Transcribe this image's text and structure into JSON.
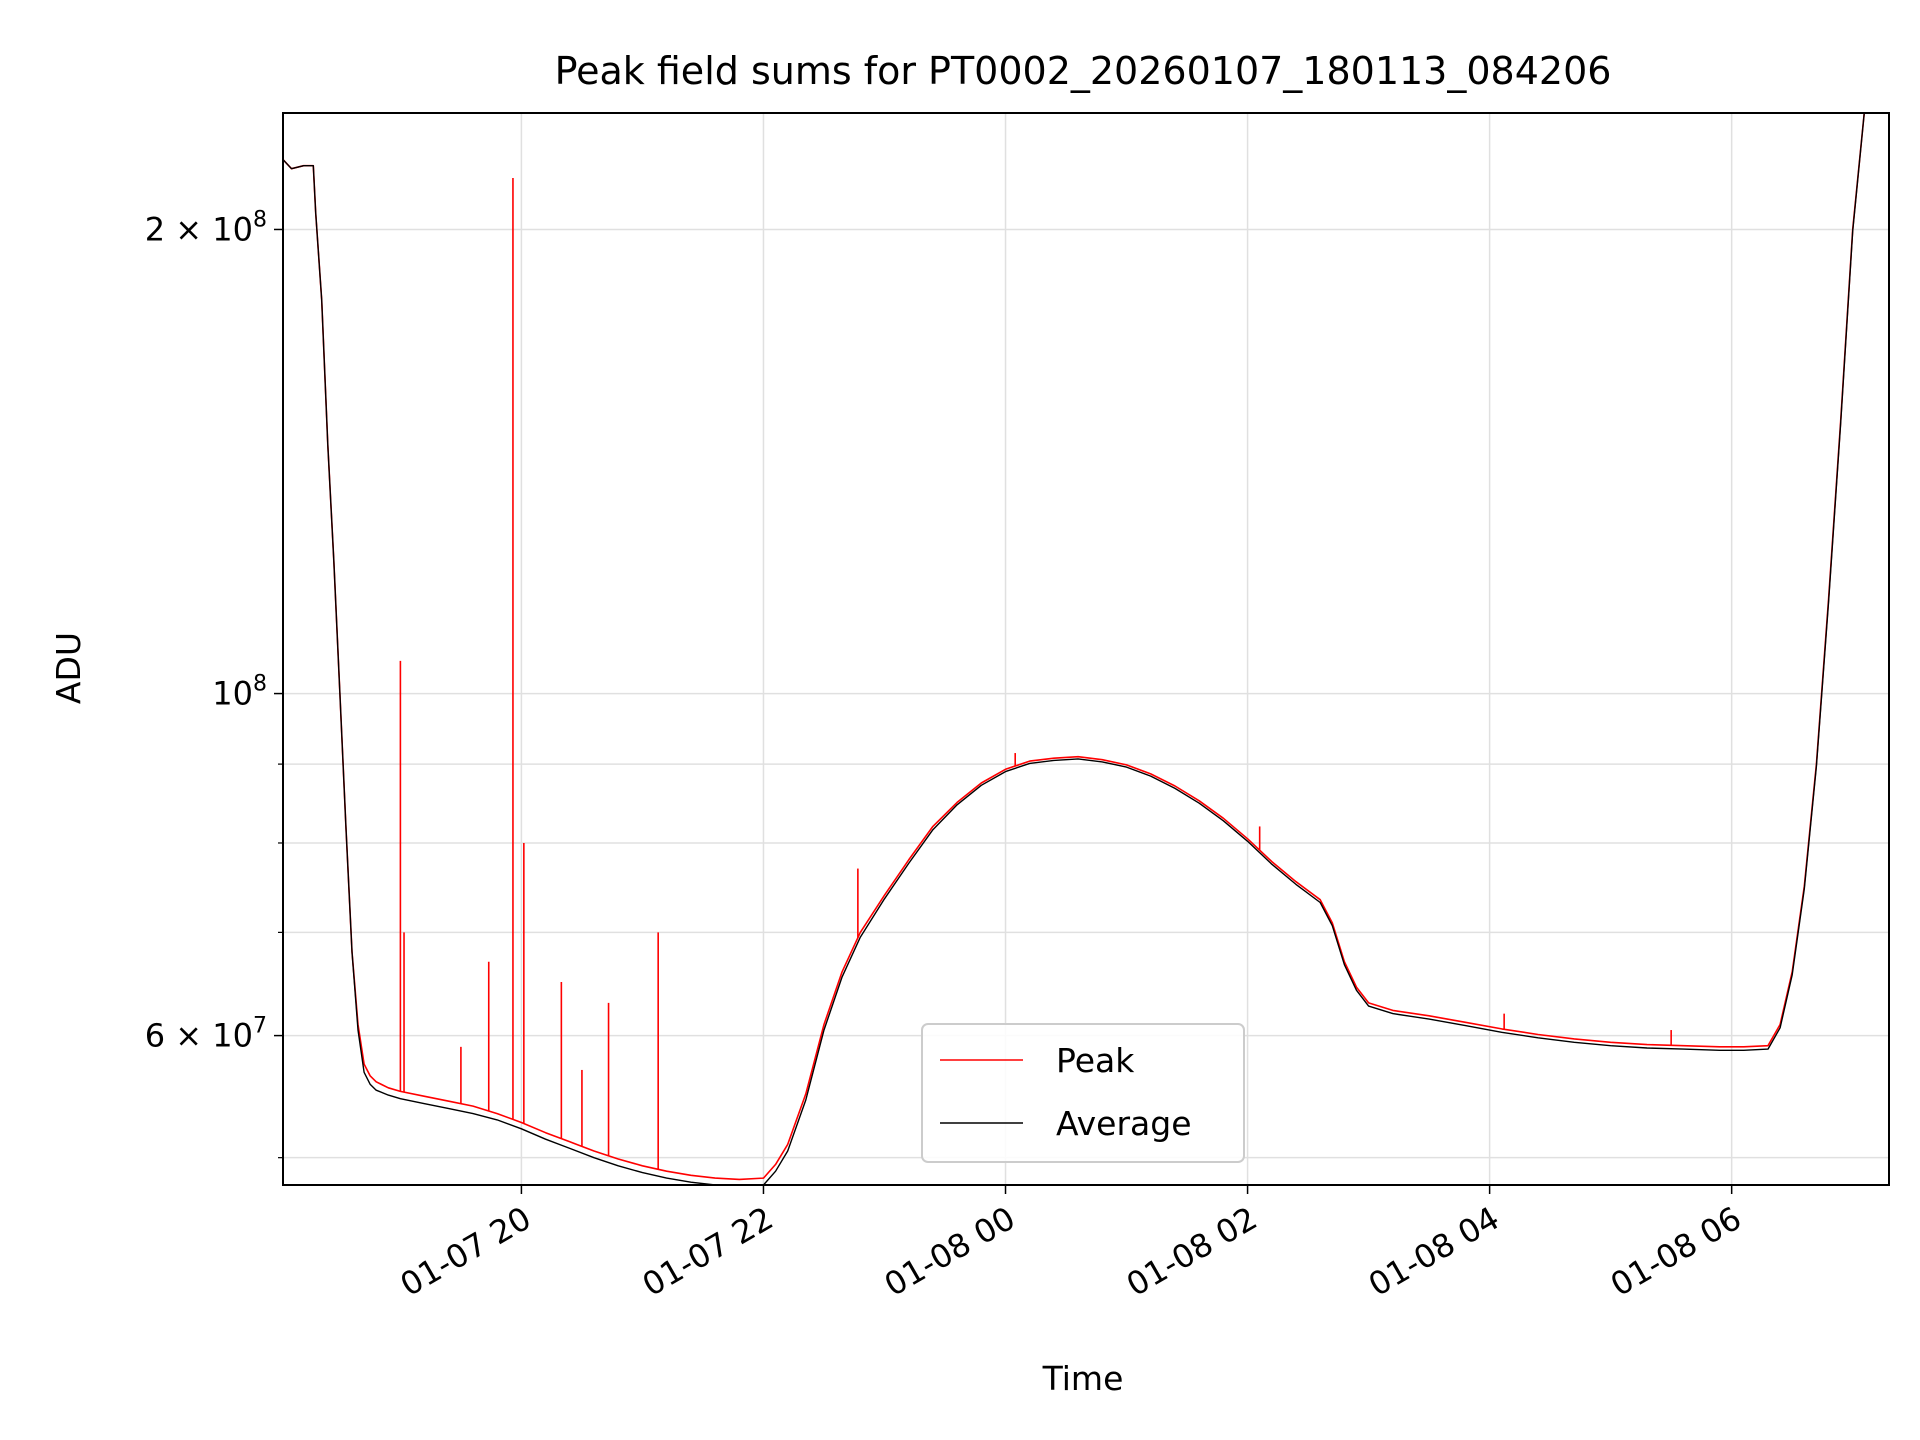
{
  "chart_data": {
    "type": "line",
    "title": "Peak field sums for PT0002_20260107_180113_084206",
    "xlabel": "Time",
    "ylabel": "ADU",
    "yscale": "log",
    "xlim": [
      18.03,
      31.3
    ],
    "ylim": [
      48000000,
      238000000
    ],
    "grid": true,
    "legend_position": "lower-center",
    "x_ticks": [
      {
        "value": 20,
        "label": "01-07 20"
      },
      {
        "value": 22,
        "label": "01-07 22"
      },
      {
        "value": 24,
        "label": "01-08 00"
      },
      {
        "value": 26,
        "label": "01-08 02"
      },
      {
        "value": 28,
        "label": "01-08 04"
      },
      {
        "value": 30,
        "label": "01-08 06"
      }
    ],
    "y_ticks": [
      {
        "value": 200000000,
        "base": "2 × 10",
        "exp": "8"
      },
      {
        "value": 100000000,
        "base": "10",
        "exp": "8"
      },
      {
        "value": 60000000,
        "base": "6 × 10",
        "exp": "7"
      }
    ],
    "y_minor_ticks": [
      50000000,
      70000000,
      80000000,
      90000000
    ],
    "series": [
      {
        "name": "Peak",
        "color": "#ff0000",
        "x": [
          18.03,
          18.1,
          18.2,
          18.28,
          18.3,
          18.35,
          18.4,
          18.45,
          18.5,
          18.55,
          18.6,
          18.65,
          18.7,
          18.75,
          18.8,
          18.9,
          19.0,
          19.2,
          19.4,
          19.6,
          19.8,
          20.0,
          20.2,
          20.4,
          20.6,
          20.8,
          21.0,
          21.2,
          21.4,
          21.6,
          21.8,
          22.0,
          22.1,
          22.2,
          22.35,
          22.5,
          22.65,
          22.8,
          23.0,
          23.2,
          23.4,
          23.6,
          23.8,
          24.0,
          24.2,
          24.4,
          24.6,
          24.8,
          25.0,
          25.2,
          25.4,
          25.6,
          25.8,
          26.0,
          26.2,
          26.4,
          26.6,
          26.7,
          26.8,
          26.9,
          27.0,
          27.2,
          27.5,
          27.8,
          28.1,
          28.4,
          28.7,
          29.0,
          29.3,
          29.6,
          29.9,
          30.1,
          30.3,
          30.4,
          30.5,
          30.6,
          30.7,
          30.8,
          30.9,
          31.0,
          31.1,
          31.3
        ],
        "y": [
          222000000,
          219000000,
          220000000,
          220000000,
          205000000,
          180000000,
          145000000,
          122000000,
          100000000,
          82000000,
          68000000,
          61000000,
          57500000,
          56500000,
          56000000,
          55500000,
          55200000,
          54800000,
          54400000,
          54000000,
          53400000,
          52700000,
          51900000,
          51200000,
          50500000,
          49900000,
          49400000,
          49000000,
          48700000,
          48500000,
          48400000,
          48500000,
          49500000,
          51000000,
          55000000,
          61000000,
          66000000,
          70000000,
          74000000,
          78000000,
          82000000,
          85000000,
          87500000,
          89300000,
          90400000,
          90800000,
          91000000,
          90600000,
          89900000,
          88700000,
          87100000,
          85200000,
          83000000,
          80500000,
          77800000,
          75500000,
          73500000,
          71000000,
          67000000,
          64500000,
          63000000,
          62300000,
          61800000,
          61200000,
          60600000,
          60100000,
          59700000,
          59400000,
          59200000,
          59100000,
          59000000,
          59000000,
          59100000,
          61000000,
          66000000,
          75000000,
          90000000,
          115000000,
          150000000,
          200000000,
          240000000,
          240000000
        ],
        "spikes": [
          {
            "x": 19.0,
            "y": 105000000
          },
          {
            "x": 19.03,
            "y": 70000000
          },
          {
            "x": 19.5,
            "y": 59000000
          },
          {
            "x": 19.73,
            "y": 67000000
          },
          {
            "x": 19.93,
            "y": 216000000
          },
          {
            "x": 20.02,
            "y": 80000000
          },
          {
            "x": 20.33,
            "y": 65000000
          },
          {
            "x": 20.5,
            "y": 57000000
          },
          {
            "x": 20.72,
            "y": 63000000
          },
          {
            "x": 21.13,
            "y": 70000000
          },
          {
            "x": 22.78,
            "y": 77000000
          },
          {
            "x": 24.08,
            "y": 91500000
          },
          {
            "x": 26.1,
            "y": 82000000
          },
          {
            "x": 28.12,
            "y": 62000000
          },
          {
            "x": 29.5,
            "y": 60500000
          }
        ]
      },
      {
        "name": "Average",
        "color": "#000000",
        "x": [
          18.03,
          18.1,
          18.2,
          18.28,
          18.3,
          18.35,
          18.4,
          18.45,
          18.5,
          18.55,
          18.6,
          18.65,
          18.7,
          18.75,
          18.8,
          18.9,
          19.0,
          19.2,
          19.4,
          19.6,
          19.8,
          20.0,
          20.2,
          20.4,
          20.6,
          20.8,
          21.0,
          21.2,
          21.4,
          21.6,
          21.8,
          22.0,
          22.1,
          22.2,
          22.35,
          22.5,
          22.65,
          22.8,
          23.0,
          23.2,
          23.4,
          23.6,
          23.8,
          24.0,
          24.2,
          24.4,
          24.6,
          24.8,
          25.0,
          25.2,
          25.4,
          25.6,
          25.8,
          26.0,
          26.2,
          26.4,
          26.6,
          26.7,
          26.8,
          26.9,
          27.0,
          27.2,
          27.5,
          27.8,
          28.1,
          28.4,
          28.7,
          29.0,
          29.3,
          29.6,
          29.9,
          30.1,
          30.3,
          30.4,
          30.5,
          30.6,
          30.7,
          30.8,
          30.9,
          31.0,
          31.1,
          31.3
        ],
        "y": [
          222000000,
          219000000,
          220000000,
          220000000,
          205000000,
          180000000,
          145000000,
          122000000,
          100000000,
          82000000,
          68000000,
          60500000,
          56800000,
          55800000,
          55300000,
          54900000,
          54600000,
          54200000,
          53800000,
          53400000,
          52900000,
          52200000,
          51400000,
          50700000,
          50000000,
          49400000,
          48900000,
          48500000,
          48200000,
          48000000,
          47900000,
          48000000,
          49000000,
          50500000,
          54500000,
          60500000,
          65500000,
          69500000,
          73600000,
          77600000,
          81600000,
          84700000,
          87200000,
          89000000,
          90100000,
          90500000,
          90700000,
          90300000,
          89600000,
          88400000,
          86800000,
          84900000,
          82700000,
          80200000,
          77500000,
          75200000,
          73200000,
          70700000,
          66700000,
          64200000,
          62700000,
          62000000,
          61500000,
          60900000,
          60300000,
          59800000,
          59400000,
          59100000,
          58900000,
          58800000,
          58700000,
          58700000,
          58800000,
          60700000,
          65700000,
          74700000,
          89700000,
          114500000,
          149500000,
          199500000,
          240000000,
          240000000
        ]
      }
    ]
  }
}
